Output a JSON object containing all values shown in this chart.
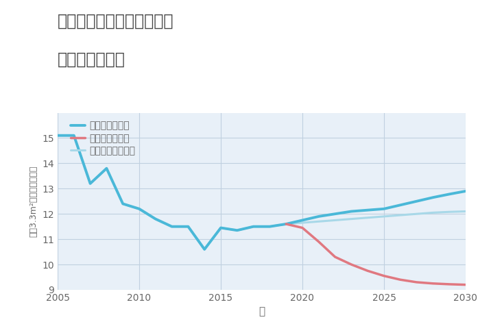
{
  "title_line1": "三重県桑名市長島町殿名の",
  "title_line2": "土地の価格推移",
  "xlabel": "年",
  "ylabel": "坪（3.3m²）単価（万円）",
  "fig_background": "#ffffff",
  "plot_background": "#e8f0f8",
  "ylim": [
    9,
    16
  ],
  "yticks": [
    9,
    10,
    11,
    12,
    13,
    14,
    15
  ],
  "xlim": [
    2005,
    2030
  ],
  "xticks": [
    2005,
    2010,
    2015,
    2020,
    2025,
    2030
  ],
  "good_scenario": {
    "label": "グッドシナリオ",
    "color": "#4ab8d8",
    "linewidth": 2.8,
    "x": [
      2005,
      2006,
      2007,
      2008,
      2009,
      2010,
      2011,
      2012,
      2013,
      2014,
      2015,
      2016,
      2017,
      2018,
      2019,
      2020,
      2021,
      2022,
      2023,
      2024,
      2025,
      2026,
      2027,
      2028,
      2029,
      2030
    ],
    "y": [
      15.1,
      15.1,
      13.2,
      13.8,
      12.4,
      12.2,
      11.8,
      11.5,
      11.5,
      10.6,
      11.45,
      11.35,
      11.5,
      11.5,
      11.6,
      11.75,
      11.9,
      12.0,
      12.1,
      12.15,
      12.2,
      12.35,
      12.5,
      12.65,
      12.78,
      12.9
    ]
  },
  "bad_scenario": {
    "label": "バッドシナリオ",
    "color": "#e07880",
    "linewidth": 2.5,
    "x": [
      2019,
      2020,
      2021,
      2022,
      2023,
      2024,
      2025,
      2026,
      2027,
      2028,
      2029,
      2030
    ],
    "y": [
      11.6,
      11.45,
      10.9,
      10.3,
      10.0,
      9.75,
      9.55,
      9.4,
      9.3,
      9.25,
      9.22,
      9.2
    ]
  },
  "normal_scenario": {
    "label": "ノーマルシナリオ",
    "color": "#a8d8e8",
    "linewidth": 2.2,
    "x": [
      2005,
      2006,
      2007,
      2008,
      2009,
      2010,
      2011,
      2012,
      2013,
      2014,
      2015,
      2016,
      2017,
      2018,
      2019,
      2020,
      2021,
      2022,
      2023,
      2024,
      2025,
      2026,
      2027,
      2028,
      2029,
      2030
    ],
    "y": [
      15.1,
      15.1,
      13.2,
      13.8,
      12.4,
      12.2,
      11.8,
      11.5,
      11.5,
      10.6,
      11.45,
      11.35,
      11.5,
      11.5,
      11.6,
      11.65,
      11.7,
      11.75,
      11.8,
      11.85,
      11.9,
      11.95,
      12.0,
      12.05,
      12.08,
      12.1
    ]
  },
  "grid_color": "#c0d0e0",
  "title_color": "#444444",
  "tick_color": "#666666",
  "label_color": "#666666",
  "title_fontsize": 17,
  "tick_fontsize": 10,
  "legend_fontsize": 10
}
